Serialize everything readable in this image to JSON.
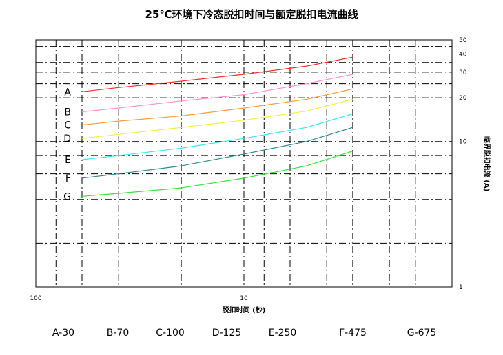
{
  "chart_data": {
    "type": "line",
    "title": "25℃环境下冷态脱扣时间与额定脱扣电流曲线",
    "xlabel": "脱扣时间 (秒)",
    "ylabel": "临界脱扣电流 (A)",
    "x_scale": "log",
    "y_scale": "log",
    "x_ticks": [
      "100",
      "10"
    ],
    "y_ticks": [
      "50",
      "40",
      "30",
      "20",
      "10",
      "1"
    ],
    "series": [
      {
        "name": "A",
        "color": "#ff2b2b",
        "x": [
          60,
          40,
          20,
          10,
          5,
          3
        ],
        "y": [
          22,
          23.5,
          26,
          29,
          33,
          38
        ]
      },
      {
        "name": "B",
        "color": "#ff8fd6",
        "x": [
          60,
          40,
          20,
          10,
          5,
          3
        ],
        "y": [
          16,
          17,
          19,
          21,
          25,
          29
        ]
      },
      {
        "name": "C",
        "color": "#ff9a3a",
        "x": [
          60,
          40,
          20,
          10,
          5,
          3
        ],
        "y": [
          13,
          13.8,
          15,
          17,
          19.5,
          23
        ]
      },
      {
        "name": "D",
        "color": "#f7ef3a",
        "x": [
          60,
          40,
          20,
          10,
          5,
          3
        ],
        "y": [
          10.5,
          11.2,
          12.5,
          14,
          16.2,
          19.5
        ]
      },
      {
        "name": "E",
        "color": "#36e5ee",
        "x": [
          60,
          40,
          20,
          10,
          5,
          3
        ],
        "y": [
          7.5,
          8.0,
          9.0,
          10.5,
          12.5,
          15.5
        ]
      },
      {
        "name": "F",
        "color": "#2f8592",
        "x": [
          60,
          40,
          20,
          10,
          5,
          3
        ],
        "y": [
          5.6,
          6.0,
          6.8,
          8.2,
          10.0,
          12.5
        ]
      },
      {
        "name": "G",
        "color": "#35e03a",
        "x": [
          60,
          40,
          20,
          10,
          5,
          3
        ],
        "y": [
          4.2,
          4.4,
          4.8,
          5.6,
          6.8,
          8.6
        ]
      }
    ],
    "legend": [
      "A-30",
      "B-70",
      "C-100",
      "D-125",
      "E-250",
      "F-475",
      "G-675"
    ],
    "grid": true
  }
}
